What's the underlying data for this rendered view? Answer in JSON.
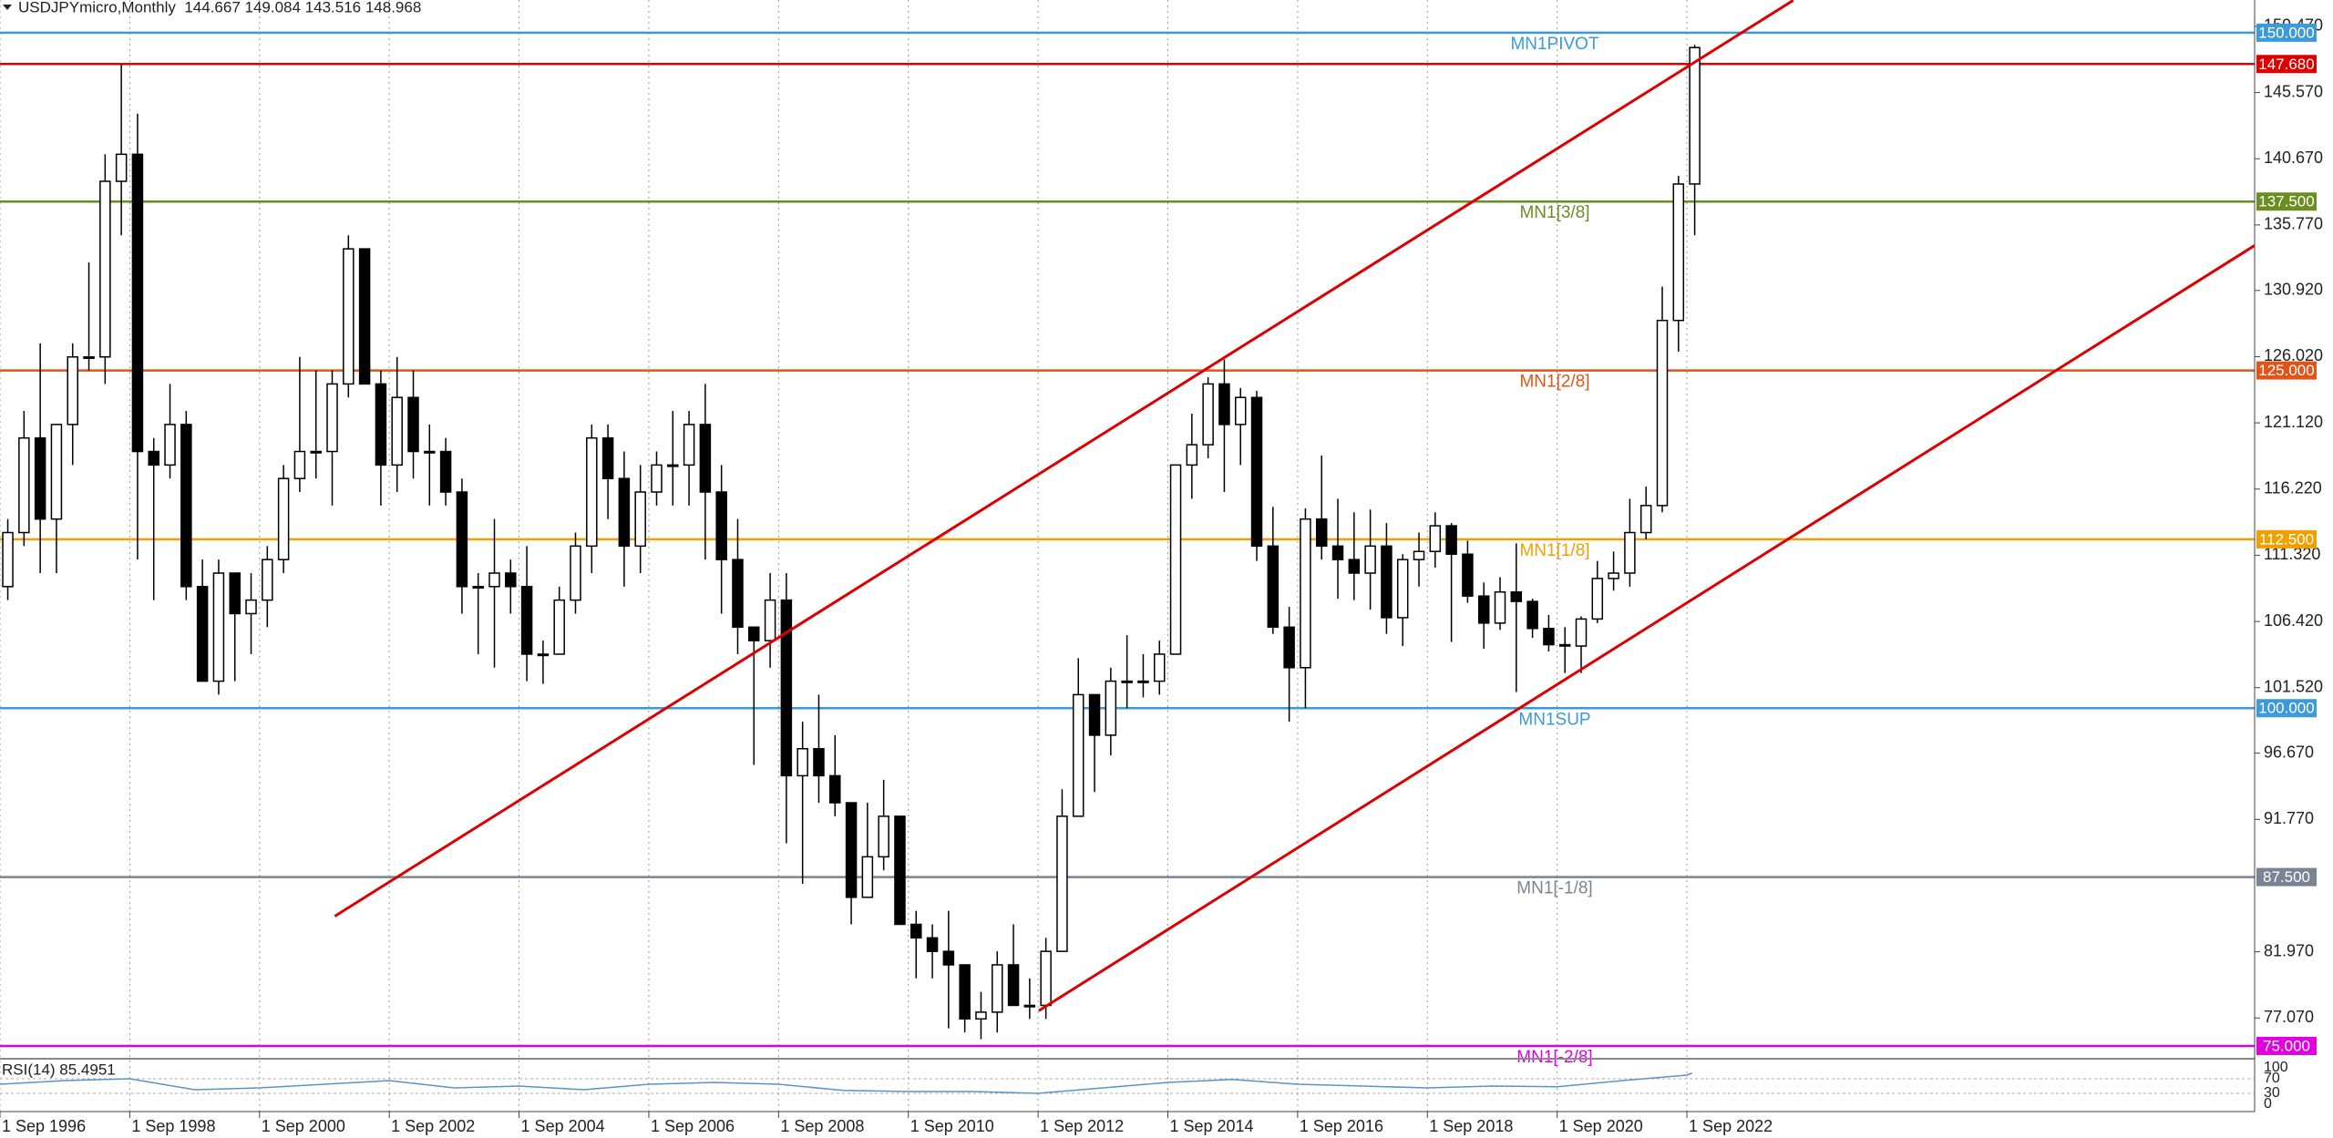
{
  "chart_data": {
    "type": "candlestick",
    "title": "USDJPYmicro,Monthly  144.667 149.084 143.516 148.968",
    "x": [
      1996.79,
      1997.04,
      1997.29,
      1997.54,
      1997.79,
      1998.04,
      1998.29,
      1998.54,
      1998.79,
      1999.04,
      1999.29,
      1999.54,
      1999.79,
      2000.04,
      2000.29,
      2000.54,
      2000.79,
      2001.04,
      2001.29,
      2001.54,
      2001.79,
      2002.04,
      2002.29,
      2002.54,
      2002.79,
      2003.04,
      2003.29,
      2003.54,
      2003.79,
      2004.04,
      2004.29,
      2004.54,
      2004.79,
      2005.04,
      2005.29,
      2005.54,
      2005.79,
      2006.04,
      2006.29,
      2006.54,
      2006.79,
      2007.04,
      2007.29,
      2007.54,
      2007.79,
      2008.04,
      2008.29,
      2008.54,
      2008.79,
      2009.04,
      2009.29,
      2009.54,
      2009.79,
      2010.04,
      2010.29,
      2010.54,
      2010.79,
      2011.04,
      2011.29,
      2011.54,
      2011.79,
      2012.04,
      2012.29,
      2012.54,
      2012.79,
      2013.04,
      2013.29,
      2013.54,
      2013.79,
      2014.04,
      2014.29,
      2014.54,
      2014.79,
      2015.04,
      2015.29,
      2015.54,
      2015.79,
      2016.04,
      2016.29,
      2016.54,
      2016.79,
      2017.04,
      2017.29,
      2017.54,
      2017.79,
      2018.04,
      2018.29,
      2018.54,
      2018.79,
      2019.04,
      2019.29,
      2019.54,
      2019.79,
      2020.04,
      2020.29,
      2020.54,
      2020.79,
      2021.04,
      2021.29,
      2021.54,
      2021.79,
      2022.04,
      2022.29,
      2022.54,
      2022.79
    ],
    "open": [
      109,
      113,
      120,
      114,
      121,
      126,
      126,
      139,
      141,
      119,
      118,
      121,
      109,
      102,
      110,
      107,
      108,
      111,
      117,
      119,
      119,
      124,
      134,
      124,
      118,
      123,
      119,
      119,
      116,
      109,
      109,
      110,
      109,
      104,
      104,
      108,
      112,
      120,
      117,
      112,
      116,
      118,
      118,
      121,
      116,
      111,
      106,
      105,
      108,
      95,
      97,
      95,
      93,
      86,
      89,
      92,
      84,
      83,
      82,
      81,
      77,
      77.5,
      81,
      78,
      78,
      82,
      92,
      101,
      98,
      102,
      102,
      102,
      104,
      118,
      119.5,
      124,
      121,
      123,
      112,
      106,
      103,
      114,
      112,
      111,
      110,
      112,
      106.7,
      111,
      111.6,
      113.5,
      111.4,
      108.3,
      106.3,
      108.6,
      107.9,
      105.9,
      104.7,
      104.6,
      106.6,
      109.6,
      110,
      113,
      115,
      128.7,
      138.8
    ],
    "high": [
      114,
      122,
      127,
      121,
      127,
      133,
      141,
      147.6,
      144,
      120,
      124,
      122,
      111,
      111,
      110,
      110,
      112,
      118,
      126,
      125,
      125,
      135,
      134,
      125,
      126,
      125,
      121,
      120,
      117,
      110,
      114,
      111,
      112,
      105,
      109,
      113,
      121,
      121,
      119,
      118,
      119,
      122,
      122,
      124,
      118,
      114,
      106,
      110,
      110,
      99,
      101,
      98,
      93,
      93,
      94.7,
      92,
      85,
      84,
      85,
      81,
      79,
      82,
      84,
      80,
      83,
      94,
      103.7,
      101,
      103,
      105.4,
      104,
      105,
      118,
      121.8,
      124.5,
      125.8,
      123.7,
      123.5,
      114.9,
      107.5,
      114.8,
      118.7,
      115.5,
      114.5,
      114.7,
      113.7,
      111.4,
      113,
      114.5,
      113.7,
      112.4,
      109.3,
      109.7,
      112.2,
      108.1,
      106.9,
      106,
      106.8,
      110.9,
      111.6,
      115.5,
      116.4,
      131.2,
      139.4,
      149.1
    ],
    "low": [
      108,
      112,
      110,
      110,
      118,
      125,
      124,
      135,
      111,
      108,
      117,
      108,
      102,
      101,
      102,
      104,
      106,
      110,
      116,
      117,
      115,
      123,
      124,
      115,
      116,
      117,
      115,
      115,
      107,
      104,
      103,
      107,
      102,
      101.8,
      104,
      107,
      110,
      114,
      109,
      110,
      115,
      115,
      115,
      111,
      107,
      104,
      95.8,
      103,
      90,
      87,
      93,
      92,
      84,
      86,
      88,
      84,
      80,
      80,
      76.3,
      76,
      75.5,
      76,
      78,
      77,
      77,
      82,
      92,
      93.8,
      96.5,
      100,
      100.8,
      101,
      104,
      115.5,
      118.5,
      116,
      118,
      110.9,
      105.5,
      99,
      100,
      111,
      108.1,
      108,
      107.3,
      105.5,
      104.6,
      109,
      110.4,
      104.9,
      107.8,
      104.4,
      105.8,
      101.2,
      105.2,
      104.2,
      102.6,
      102.6,
      106.3,
      108.7,
      109,
      112.5,
      114.5,
      126.4,
      135
    ],
    "close": [
      113,
      120,
      114,
      121,
      126,
      126,
      139,
      141,
      119,
      118,
      121,
      109,
      102,
      110,
      107,
      108,
      111,
      117,
      119,
      119,
      124,
      134,
      124,
      118,
      123,
      119,
      119,
      116,
      109,
      109,
      110,
      109,
      104,
      104,
      108,
      112,
      120,
      117,
      112,
      116,
      118,
      118,
      121,
      116,
      111,
      106,
      105,
      108,
      95,
      97,
      95,
      93,
      86,
      89,
      92,
      84,
      83,
      82,
      81,
      77,
      77.5,
      81,
      78,
      78,
      82,
      92,
      101,
      98,
      102,
      102,
      102,
      104,
      118,
      119.5,
      124,
      121,
      123,
      112,
      106,
      103,
      114,
      112,
      111,
      110,
      112,
      106.7,
      111,
      111.6,
      113.5,
      111.4,
      108.3,
      106.3,
      108.6,
      107.9,
      105.9,
      104.7,
      104.6,
      106.6,
      109.6,
      110,
      113,
      115,
      128.7,
      138.8,
      148.9
    ],
    "candle_up_color": "#ffffff",
    "candle_down_color": "#000000",
    "xlim": [
      1996.67,
      2031.42
    ],
    "ylim": [
      74.12,
      152.42
    ],
    "grid": true,
    "xticks": [
      {
        "value": 1996.67,
        "label": "1 Sep 1996"
      },
      {
        "value": 1998.67,
        "label": "1 Sep 1998"
      },
      {
        "value": 2000.67,
        "label": "1 Sep 2000"
      },
      {
        "value": 2002.67,
        "label": "1 Sep 2002"
      },
      {
        "value": 2004.67,
        "label": "1 Sep 2004"
      },
      {
        "value": 2006.67,
        "label": "1 Sep 2006"
      },
      {
        "value": 2008.67,
        "label": "1 Sep 2008"
      },
      {
        "value": 2010.67,
        "label": "1 Sep 2010"
      },
      {
        "value": 2012.67,
        "label": "1 Sep 2012"
      },
      {
        "value": 2014.67,
        "label": "1 Sep 2014"
      },
      {
        "value": 2016.67,
        "label": "1 Sep 2016"
      },
      {
        "value": 2018.67,
        "label": "1 Sep 2018"
      },
      {
        "value": 2020.67,
        "label": "1 Sep 2020"
      },
      {
        "value": 2022.67,
        "label": "1 Sep 2022"
      }
    ],
    "yticks": [
      {
        "value": 150.47,
        "label": "150.470"
      },
      {
        "value": 145.57,
        "label": "145.570"
      },
      {
        "value": 140.67,
        "label": "140.670"
      },
      {
        "value": 135.77,
        "label": "135.770"
      },
      {
        "value": 130.92,
        "label": "130.920"
      },
      {
        "value": 126.02,
        "label": "126.020"
      },
      {
        "value": 121.12,
        "label": "121.120"
      },
      {
        "value": 116.22,
        "label": "116.220"
      },
      {
        "value": 111.32,
        "label": "111.320"
      },
      {
        "value": 106.42,
        "label": "106.420"
      },
      {
        "value": 101.52,
        "label": "101.520"
      },
      {
        "value": 96.67,
        "label": "96.670"
      },
      {
        "value": 91.77,
        "label": "91.770"
      },
      {
        "value": 81.97,
        "label": "81.970"
      },
      {
        "value": 77.07,
        "label": "77.070"
      }
    ],
    "levels": [
      {
        "name": "MN1PIVOT",
        "value": 150,
        "value_label": "150.000",
        "color": "#3c9ad8"
      },
      {
        "name": null,
        "value": 147.68,
        "value_label": "147.680",
        "color": "#dd0000"
      },
      {
        "name": "MN1[3/8]",
        "value": 137.5,
        "value_label": "137.500",
        "color": "#6b8e23"
      },
      {
        "name": "MN1[2/8]",
        "value": 125,
        "value_label": "125.000",
        "color": "#e0541a"
      },
      {
        "name": "MN1[1/8]",
        "value": 112.5,
        "value_label": "112.500",
        "color": "#f0a000"
      },
      {
        "name": "MN1SUP",
        "value": 100,
        "value_label": "100.000",
        "color": "#3c9ad8"
      },
      {
        "name": "MN1[-1/8]",
        "value": 87.5,
        "value_label": "87.500",
        "color": "#7a8593"
      },
      {
        "name": "MN1[-2/8]",
        "value": 75,
        "value_label": "75.000",
        "color": "#e000e0"
      }
    ],
    "trendline_color": "#dd0000",
    "trendlines": [
      {
        "x": [
          2001.83,
          2024.31
        ],
        "y": [
          84.6,
          152.4
        ]
      },
      {
        "x": [
          2012.68,
          2031.42
        ],
        "y": [
          77.6,
          134.25
        ]
      }
    ],
    "rsi": {
      "label": "RSI(14) 85.4951",
      "color": "#5b93c7",
      "x": [
        1996.67,
        1997.67,
        1998.67,
        1999.67,
        2000.67,
        2001.67,
        2002.67,
        2003.67,
        2004.67,
        2005.67,
        2006.67,
        2007.67,
        2008.67,
        2009.67,
        2010.67,
        2011.67,
        2012.67,
        2013.67,
        2014.67,
        2015.67,
        2016.67,
        2017.67,
        2018.67,
        2019.67,
        2020.67,
        2021.67,
        2022.67,
        2022.75
      ],
      "values": [
        55,
        65,
        70,
        40,
        45,
        55,
        65,
        45,
        50,
        40,
        55,
        60,
        55,
        38,
        35,
        35,
        30,
        45,
        60,
        68,
        55,
        50,
        45,
        50,
        48,
        65,
        80,
        85.4951
      ],
      "ylim": [
        0,
        100
      ],
      "yticks": [
        100,
        70,
        30,
        0
      ]
    }
  }
}
